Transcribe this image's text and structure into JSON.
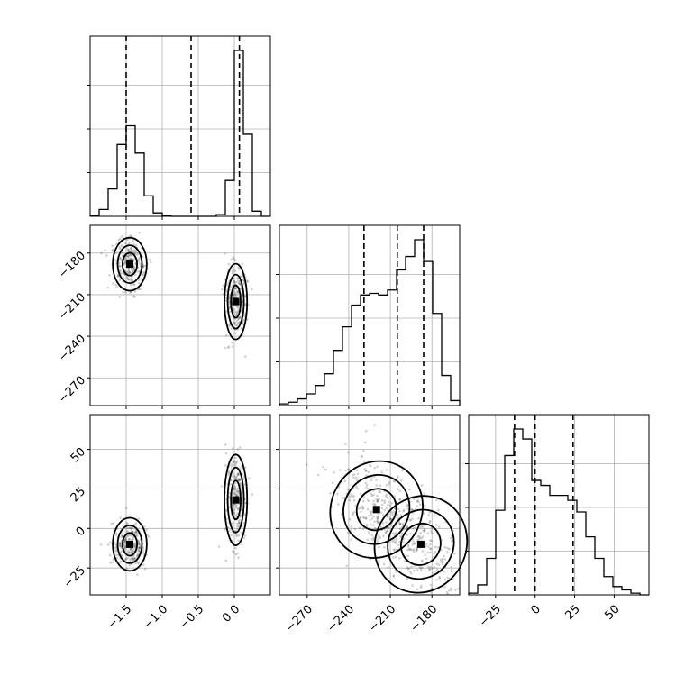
{
  "chart_data": {
    "type": "corner",
    "grid": true,
    "parameters": [
      {
        "ticks": [
          -1.5,
          -1.0,
          -0.5,
          0.0
        ],
        "tick_labels": [
          "−1.5",
          "−1.0",
          "−0.5",
          "0.0"
        ],
        "range": [
          -2.0,
          0.5
        ]
      },
      {
        "ticks": [
          -270,
          -240,
          -210,
          -180
        ],
        "tick_labels": [
          "−270",
          "−240",
          "−210",
          "−180"
        ],
        "range": [
          -290,
          -160
        ]
      },
      {
        "ticks": [
          -25,
          0,
          25,
          50
        ],
        "tick_labels": [
          "−25",
          "0",
          "25",
          "50"
        ],
        "range": [
          -42,
          72
        ]
      }
    ],
    "histograms": [
      {
        "parameter": 0,
        "bin_edges": [
          -2.0,
          -1.875,
          -1.75,
          -1.625,
          -1.5,
          -1.375,
          -1.25,
          -1.125,
          -1.0,
          -0.875,
          -0.75,
          -0.625,
          -0.5,
          -0.375,
          -0.25,
          -0.125,
          0.0,
          0.125,
          0.25,
          0.375,
          0.5
        ],
        "counts": [
          0.005,
          0.04,
          0.16,
          0.42,
          0.53,
          0.37,
          0.12,
          0.02,
          0.003,
          0,
          0,
          0,
          0,
          0,
          0.01,
          0.21,
          0.97,
          0.48,
          0.03,
          0
        ],
        "quantiles": [
          -1.5,
          -0.6,
          0.07
        ]
      },
      {
        "parameter": 1,
        "bin_edges": [
          -290,
          -283.5,
          -277,
          -270.5,
          -264,
          -257.5,
          -251,
          -244.5,
          -238,
          -231.5,
          -225,
          -218.5,
          -212,
          -205.5,
          -199,
          -192.5,
          -186,
          -179.5,
          -173,
          -166.5,
          -160
        ],
        "counts": [
          0.01,
          0.02,
          0.04,
          0.07,
          0.12,
          0.19,
          0.33,
          0.47,
          0.6,
          0.66,
          0.67,
          0.66,
          0.69,
          0.81,
          0.89,
          0.99,
          0.86,
          0.55,
          0.18,
          0.03
        ],
        "quantiles": [
          -229,
          -205,
          -186
        ]
      },
      {
        "parameter": 2,
        "bin_edges": [
          -42,
          -36.3,
          -30.6,
          -24.9,
          -19.2,
          -13.5,
          -7.8,
          -2.1,
          3.6,
          9.3,
          15,
          20.7,
          26.4,
          32.1,
          37.8,
          43.5,
          49.2,
          54.9,
          60.6,
          66.3,
          72
        ],
        "counts": [
          0.01,
          0.06,
          0.22,
          0.51,
          0.84,
          1.0,
          0.94,
          0.69,
          0.66,
          0.6,
          0.6,
          0.57,
          0.5,
          0.35,
          0.22,
          0.11,
          0.05,
          0.03,
          0.01,
          0
        ],
        "quantiles": [
          -13,
          0,
          24
        ]
      }
    ],
    "joint_2d": [
      {
        "x_parameter": 0,
        "y_parameter": 1,
        "modes": [
          {
            "center": [
              -1.45,
              -188
            ],
            "peak": [
              -1.45,
              -188
            ]
          },
          {
            "center": [
              0.02,
              -215
            ],
            "peak": [
              0.02,
              -215
            ]
          }
        ]
      },
      {
        "x_parameter": 0,
        "y_parameter": 2,
        "modes": [
          {
            "center": [
              -1.45,
              -10
            ],
            "peak": [
              -1.45,
              -10
            ]
          },
          {
            "center": [
              0.02,
              18
            ],
            "peak": [
              0.02,
              18
            ]
          }
        ]
      },
      {
        "x_parameter": 1,
        "y_parameter": 2,
        "modes": [
          {
            "center": [
              -220,
              12
            ],
            "peak": [
              -220,
              12
            ]
          },
          {
            "center": [
              -188,
              -10
            ],
            "peak": [
              -188,
              -10
            ]
          }
        ]
      }
    ]
  }
}
